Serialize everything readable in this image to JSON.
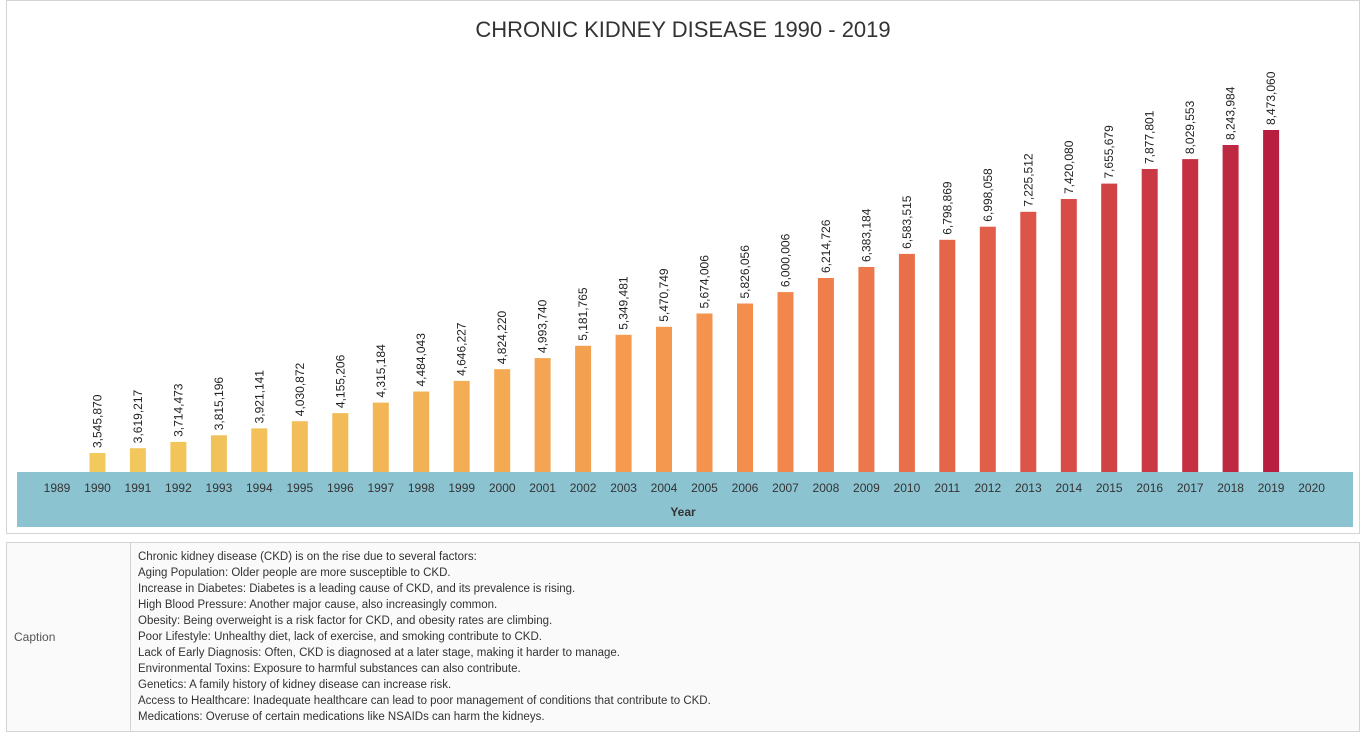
{
  "chart_data": {
    "type": "bar",
    "title": "CHRONIC KIDNEY DISEASE 1990 - 2019",
    "xlabel": "Year",
    "ylabel": "",
    "axis_ticks": [
      "1989",
      "1990",
      "1991",
      "1992",
      "1993",
      "1994",
      "1995",
      "1996",
      "1997",
      "1998",
      "1999",
      "2000",
      "2001",
      "2002",
      "2003",
      "2004",
      "2005",
      "2006",
      "2007",
      "2008",
      "2009",
      "2010",
      "2011",
      "2012",
      "2013",
      "2014",
      "2015",
      "2016",
      "2017",
      "2018",
      "2019",
      "2020"
    ],
    "categories": [
      "1990",
      "1991",
      "1992",
      "1993",
      "1994",
      "1995",
      "1996",
      "1997",
      "1998",
      "1999",
      "2000",
      "2001",
      "2002",
      "2003",
      "2004",
      "2005",
      "2006",
      "2007",
      "2008",
      "2009",
      "2010",
      "2011",
      "2012",
      "2013",
      "2014",
      "2015",
      "2016",
      "2017",
      "2018",
      "2019"
    ],
    "values": [
      3545870,
      3619217,
      3714473,
      3815196,
      3921141,
      4030872,
      4155206,
      4315184,
      4484043,
      4646227,
      4824220,
      4993740,
      5181765,
      5349481,
      5470749,
      5674006,
      5826056,
      6000006,
      6214726,
      6383184,
      6583515,
      6798869,
      6998058,
      7225512,
      7420080,
      7655679,
      7877801,
      8029553,
      8243984,
      8473060
    ],
    "value_labels": [
      "3,545,870",
      "3,619,217",
      "3,714,473",
      "3,815,196",
      "3,921,141",
      "4,030,872",
      "4,155,206",
      "4,315,184",
      "4,484,043",
      "4,646,227",
      "4,824,220",
      "4,993,740",
      "5,181,765",
      "5,349,481",
      "5,470,749",
      "5,674,006",
      "5,826,056",
      "6,000,006",
      "6,214,726",
      "6,383,184",
      "6,583,515",
      "6,798,869",
      "6,998,058",
      "7,225,512",
      "7,420,080",
      "7,655,679",
      "7,877,801",
      "8,029,553",
      "8,243,984",
      "8,473,060"
    ],
    "ylim": [
      3300000,
      8800000
    ],
    "grid": false,
    "legend": "none",
    "colors": {
      "gradient_low": "#f2c95c",
      "gradient_mid": "#f5914d",
      "gradient_high": "#dd5448",
      "gradient_top": "#b81e3f",
      "axis_band": "#8cc3d1"
    }
  },
  "caption": {
    "label": "Caption",
    "lines": [
      "Chronic kidney disease (CKD) is on the rise due to several factors:",
      "Aging Population: Older people are more susceptible to CKD.",
      "Increase in Diabetes: Diabetes is a leading cause of CKD, and its prevalence is rising.",
      "High Blood Pressure: Another major cause, also increasingly common.",
      "Obesity: Being overweight is a risk factor for CKD, and obesity rates are climbing.",
      "Poor Lifestyle: Unhealthy diet, lack of exercise, and smoking contribute to CKD.",
      "Lack of Early Diagnosis: Often, CKD is diagnosed at a later stage, making it harder to manage.",
      "Environmental Toxins: Exposure to harmful substances can also contribute.",
      "Genetics: A family history of kidney disease can increase risk.",
      "Access to Healthcare: Inadequate healthcare can lead to poor management of conditions that contribute to CKD.",
      "Medications: Overuse of certain medications like NSAIDs can harm the kidneys."
    ]
  }
}
